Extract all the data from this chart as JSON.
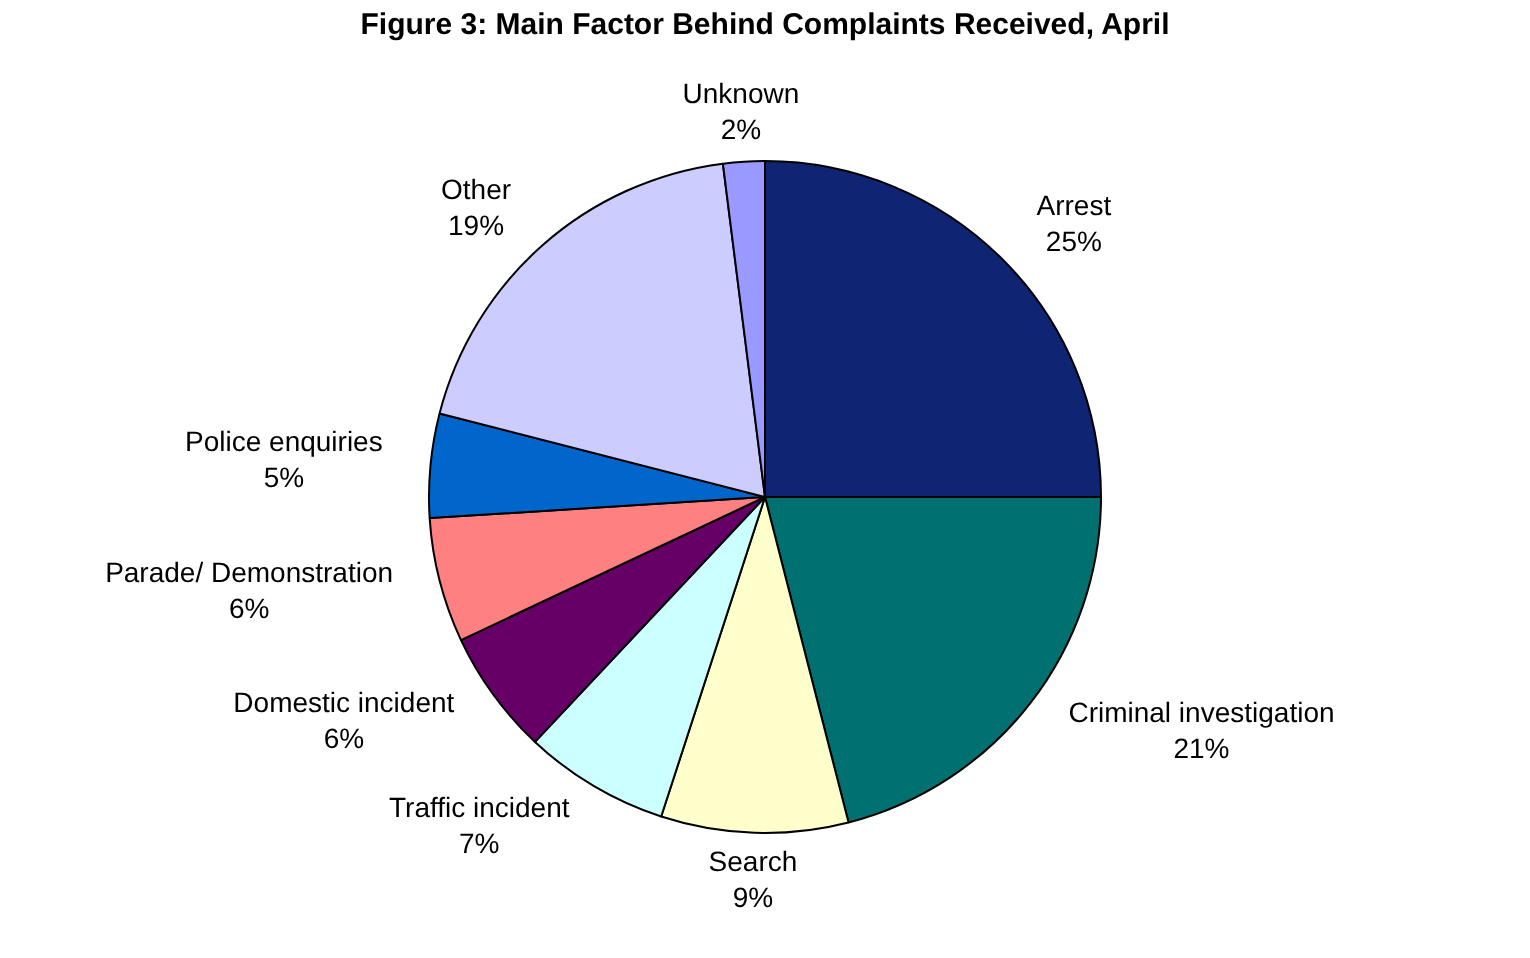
{
  "chart_data": {
    "type": "pie",
    "title": "Figure 3: Main Factor Behind Complaints Received, April",
    "categories": [
      "Arrest",
      "Criminal investigation",
      "Search",
      "Traffic incident",
      "Domestic incident",
      "Parade/ Demonstration",
      "Police enquiries",
      "Other",
      "Unknown"
    ],
    "values": [
      25,
      21,
      9,
      7,
      6,
      6,
      5,
      19,
      2
    ],
    "value_labels": [
      "25%",
      "21%",
      "9%",
      "7%",
      "6%",
      "6%",
      "5%",
      "19%",
      "2%"
    ],
    "colors": [
      "#0f2473",
      "#007070",
      "#ffffcc",
      "#ccffff",
      "#660066",
      "#ff8080",
      "#0066cc",
      "#ccccff",
      "#9999ff"
    ],
    "legend": false
  }
}
